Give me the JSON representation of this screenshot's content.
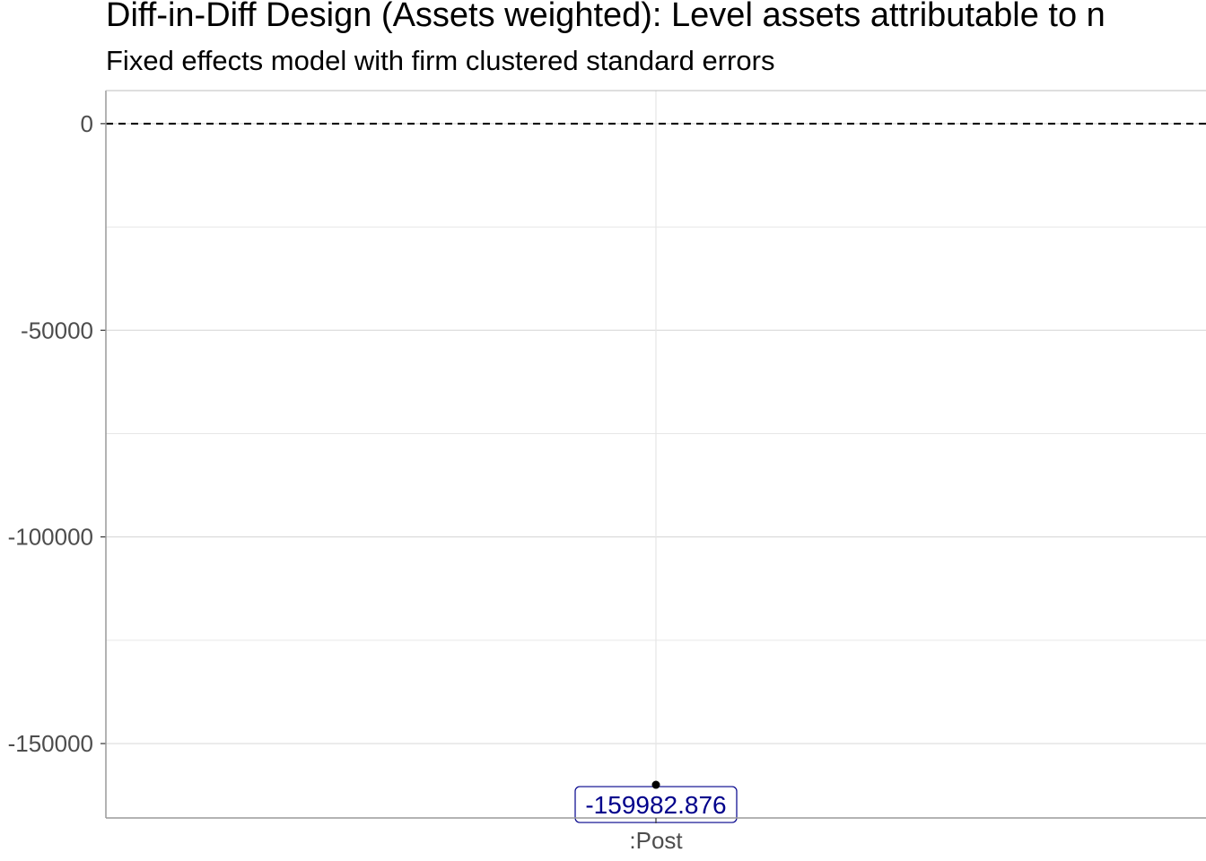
{
  "chart_data": {
    "type": "scatter",
    "title": "Diff-in-Diff Design (Assets weighted): Level assets attributable to n",
    "subtitle": "Fixed effects model with firm clustered standard errors",
    "xlabel": "",
    "ylabel": "",
    "categories": [
      ":Post"
    ],
    "series": [
      {
        "values": [
          -159982.876
        ],
        "labels": [
          "-159982.876"
        ]
      }
    ],
    "reference_line": {
      "y": 0,
      "style": "dashed"
    },
    "ylim": [
      -168000,
      8000
    ],
    "yticks": [
      0,
      -50000,
      -100000,
      -150000
    ],
    "ytick_labels": [
      "0",
      "-50000",
      "-100000",
      "-150000"
    ],
    "grid": true,
    "colors": {
      "label_text": "#00008b",
      "label_border": "#00008b",
      "point": "#000000",
      "grid": "#e6e6e6"
    }
  }
}
